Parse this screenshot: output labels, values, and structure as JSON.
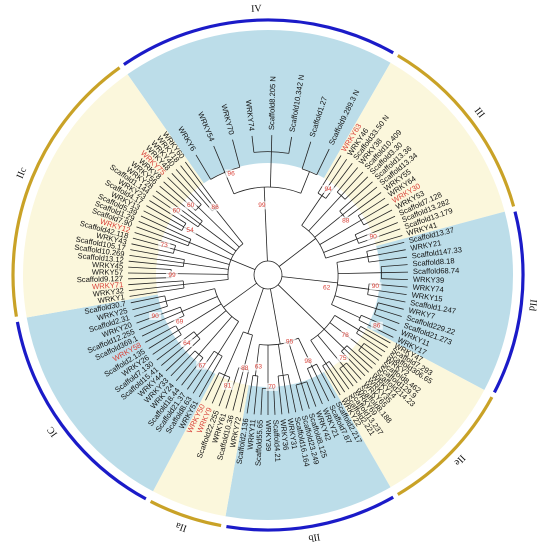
{
  "colors": {
    "blue_arc": "#1b1bc8",
    "gold_arc": "#c9a227",
    "blue_sector": "#bcdde9",
    "cream_sector": "#fbf7dc",
    "branch": "#222222",
    "highlight_text": "#d9433a",
    "leaf_text": "#111111"
  },
  "groups": [
    {
      "label": "IV",
      "arc": "blue",
      "sector": "blue"
    },
    {
      "label": "III",
      "arc": "gold",
      "sector": "cream"
    },
    {
      "label": "IId",
      "arc": "blue",
      "sector": "blue"
    },
    {
      "label": "IIe",
      "arc": "gold",
      "sector": "cream"
    },
    {
      "label": "IIb",
      "arc": "blue",
      "sector": "blue"
    },
    {
      "label": "IIa",
      "arc": "gold",
      "sector": "cream"
    },
    {
      "label": "IC",
      "arc": "blue",
      "sector": "blue"
    },
    {
      "label": "IIc",
      "arc": "gold",
      "sector": "cream"
    }
  ],
  "bootstrap_values": [
    "99",
    "88",
    "90",
    "78",
    "98",
    "95",
    "94",
    "90",
    "62",
    "86",
    "75",
    "70",
    "63",
    "88",
    "81",
    "67",
    "64",
    "69",
    "90",
    "99",
    "73",
    "54",
    "60",
    "86",
    "60",
    "96"
  ],
  "leaves": [
    {
      "text": "WRKY47",
      "hl": false
    },
    {
      "text": "Scaffold7.293",
      "hl": false
    },
    {
      "text": "Scaffold306.65",
      "hl": false
    },
    {
      "text": "WRKY2",
      "hl": false
    },
    {
      "text": "Scaffold8.462",
      "hl": false
    },
    {
      "text": "Scaffold129.9",
      "hl": false
    },
    {
      "text": "Scaffold214.23",
      "hl": false
    },
    {
      "text": "WRKY14",
      "hl": false
    },
    {
      "text": "WRKY35",
      "hl": false
    },
    {
      "text": "WRKY65",
      "hl": false
    },
    {
      "text": "Scaffold8.188",
      "hl": false
    },
    {
      "text": "WRKY69",
      "hl": false
    },
    {
      "text": "Scaffold13.237",
      "hl": false
    },
    {
      "text": "Scaffold2.221",
      "hl": false
    },
    {
      "text": "WRKY22",
      "hl": false
    },
    {
      "text": "Scaffold2.217",
      "hl": false
    },
    {
      "text": "Scaffold7.87",
      "hl": false
    },
    {
      "text": "WRKY21",
      "hl": false
    },
    {
      "text": "WRKY42",
      "hl": false
    },
    {
      "text": "Scaffold8.125",
      "hl": false
    },
    {
      "text": "Scaffold23.249",
      "hl": false
    },
    {
      "text": "Scaffold16.164",
      "hl": false
    },
    {
      "text": "WRKY31",
      "hl": false
    },
    {
      "text": "WRKY36",
      "hl": false
    },
    {
      "text": "Scaffold4.21",
      "hl": false
    },
    {
      "text": "WRKY39",
      "hl": false
    },
    {
      "text": "Scaffold55.65",
      "hl": false
    },
    {
      "text": "WRKY11",
      "hl": false
    },
    {
      "text": "Scaffold2.136",
      "hl": false
    },
    {
      "text": "WRKY72",
      "hl": false
    },
    {
      "text": "Scaffold10.36",
      "hl": false
    },
    {
      "text": "WRKY61",
      "hl": false
    },
    {
      "text": "Scaffold22.255",
      "hl": false
    },
    {
      "text": "WRKY9",
      "hl": true
    },
    {
      "text": "WRKY50",
      "hl": true
    },
    {
      "text": "WRKY51",
      "hl": false
    },
    {
      "text": "Scaffold8.63",
      "hl": false
    },
    {
      "text": "Scaffold21.37",
      "hl": false
    },
    {
      "text": "Scaffold18.44",
      "hl": false
    },
    {
      "text": "WRKY24",
      "hl": false
    },
    {
      "text": "WRKY33",
      "hl": false
    },
    {
      "text": "WRKY44",
      "hl": false
    },
    {
      "text": "Scaffold15.41",
      "hl": false
    },
    {
      "text": "Scaffold7.130",
      "hl": false
    },
    {
      "text": "WRKY26",
      "hl": false
    },
    {
      "text": "Scaffold2.135",
      "hl": false
    },
    {
      "text": "WRKY58",
      "hl": true
    },
    {
      "text": "Scaffold369.1",
      "hl": false
    },
    {
      "text": "Scaffold12.255",
      "hl": false
    },
    {
      "text": "WRKY20",
      "hl": false
    },
    {
      "text": "Scaffold2.31",
      "hl": false
    },
    {
      "text": "WRKY25",
      "hl": false
    },
    {
      "text": "Scaffold30.7",
      "hl": false
    },
    {
      "text": "WRKY1",
      "hl": false
    },
    {
      "text": "WRKY32",
      "hl": false
    },
    {
      "text": "WRKY71",
      "hl": true
    },
    {
      "text": "Scaffold9.127",
      "hl": false
    },
    {
      "text": "WRKY57",
      "hl": false
    },
    {
      "text": "WRKY45",
      "hl": false
    },
    {
      "text": "Scaffold13.12",
      "hl": false
    },
    {
      "text": "Scaffold10.269",
      "hl": false
    },
    {
      "text": "Scaffold105.17",
      "hl": false
    },
    {
      "text": "WRKY43",
      "hl": false
    },
    {
      "text": "Scaffold42.118",
      "hl": false
    },
    {
      "text": "WRKY12",
      "hl": true
    },
    {
      "text": "Scaffold7.90",
      "hl": false
    },
    {
      "text": "Scaffold1.29",
      "hl": false
    },
    {
      "text": "Scaffold5.39",
      "hl": false
    },
    {
      "text": "WRKY13",
      "hl": false
    },
    {
      "text": "Scaffold4.17",
      "hl": false
    },
    {
      "text": "WRKY23",
      "hl": false
    },
    {
      "text": "Scaffold1.144",
      "hl": false
    },
    {
      "text": "WRKY28",
      "hl": false
    },
    {
      "text": "WRKY56",
      "hl": false
    },
    {
      "text": "WRKY8",
      "hl": false
    },
    {
      "text": "WRKY75",
      "hl": true
    },
    {
      "text": "WRKY48",
      "hl": false
    },
    {
      "text": "WRKY40",
      "hl": false
    },
    {
      "text": "WRKY18",
      "hl": false
    },
    {
      "text": "WRKY60",
      "hl": false
    },
    {
      "text": "WRKY6",
      "hl": false
    },
    {
      "text": "WRKY54",
      "hl": false
    },
    {
      "text": "WRKY70",
      "hl": false
    },
    {
      "text": "WRKY74",
      "hl": false
    },
    {
      "text": "Scaffold8.205 N",
      "hl": false
    },
    {
      "text": "Scaffold10.342 N",
      "hl": false
    },
    {
      "text": "Scaffold1.27",
      "hl": false
    },
    {
      "text": "Scaffold9.289.3 N",
      "hl": false
    },
    {
      "text": "WRKY63",
      "hl": true
    },
    {
      "text": "WRKY46",
      "hl": false
    },
    {
      "text": "Scaffold33.50 N",
      "hl": false
    },
    {
      "text": "WRKY38",
      "hl": false
    },
    {
      "text": "Scaffold10.409",
      "hl": false
    },
    {
      "text": "Scaffold3.30",
      "hl": false
    },
    {
      "text": "Scaffold13.36",
      "hl": false
    },
    {
      "text": "Scaffold13.34",
      "hl": false
    },
    {
      "text": "WRKY55",
      "hl": false
    },
    {
      "text": "WRKY64",
      "hl": false
    },
    {
      "text": "WRKY30",
      "hl": true
    },
    {
      "text": "WRKY53",
      "hl": false
    },
    {
      "text": "Scaffold7.128",
      "hl": false
    },
    {
      "text": "Scaffold13.282",
      "hl": false
    },
    {
      "text": "Scaffold13.179",
      "hl": false
    },
    {
      "text": "WRKY41",
      "hl": false
    },
    {
      "text": "Scaffold13.37",
      "hl": false
    },
    {
      "text": "WRKY21",
      "hl": false
    },
    {
      "text": "Scaffold147.33",
      "hl": false
    },
    {
      "text": "Scaffold8.18",
      "hl": false
    },
    {
      "text": "Scaffold68.74",
      "hl": false
    },
    {
      "text": "WRKY39",
      "hl": false
    },
    {
      "text": "WRKY74",
      "hl": false
    },
    {
      "text": "WRKY15",
      "hl": false
    },
    {
      "text": "Scaffold1.247",
      "hl": false
    },
    {
      "text": "WRKY7",
      "hl": false
    },
    {
      "text": "Scaffold229.22",
      "hl": false
    },
    {
      "text": "Scaffold21.273",
      "hl": false
    },
    {
      "text": "WRKY11",
      "hl": false
    },
    {
      "text": "WRKY17",
      "hl": false
    }
  ]
}
